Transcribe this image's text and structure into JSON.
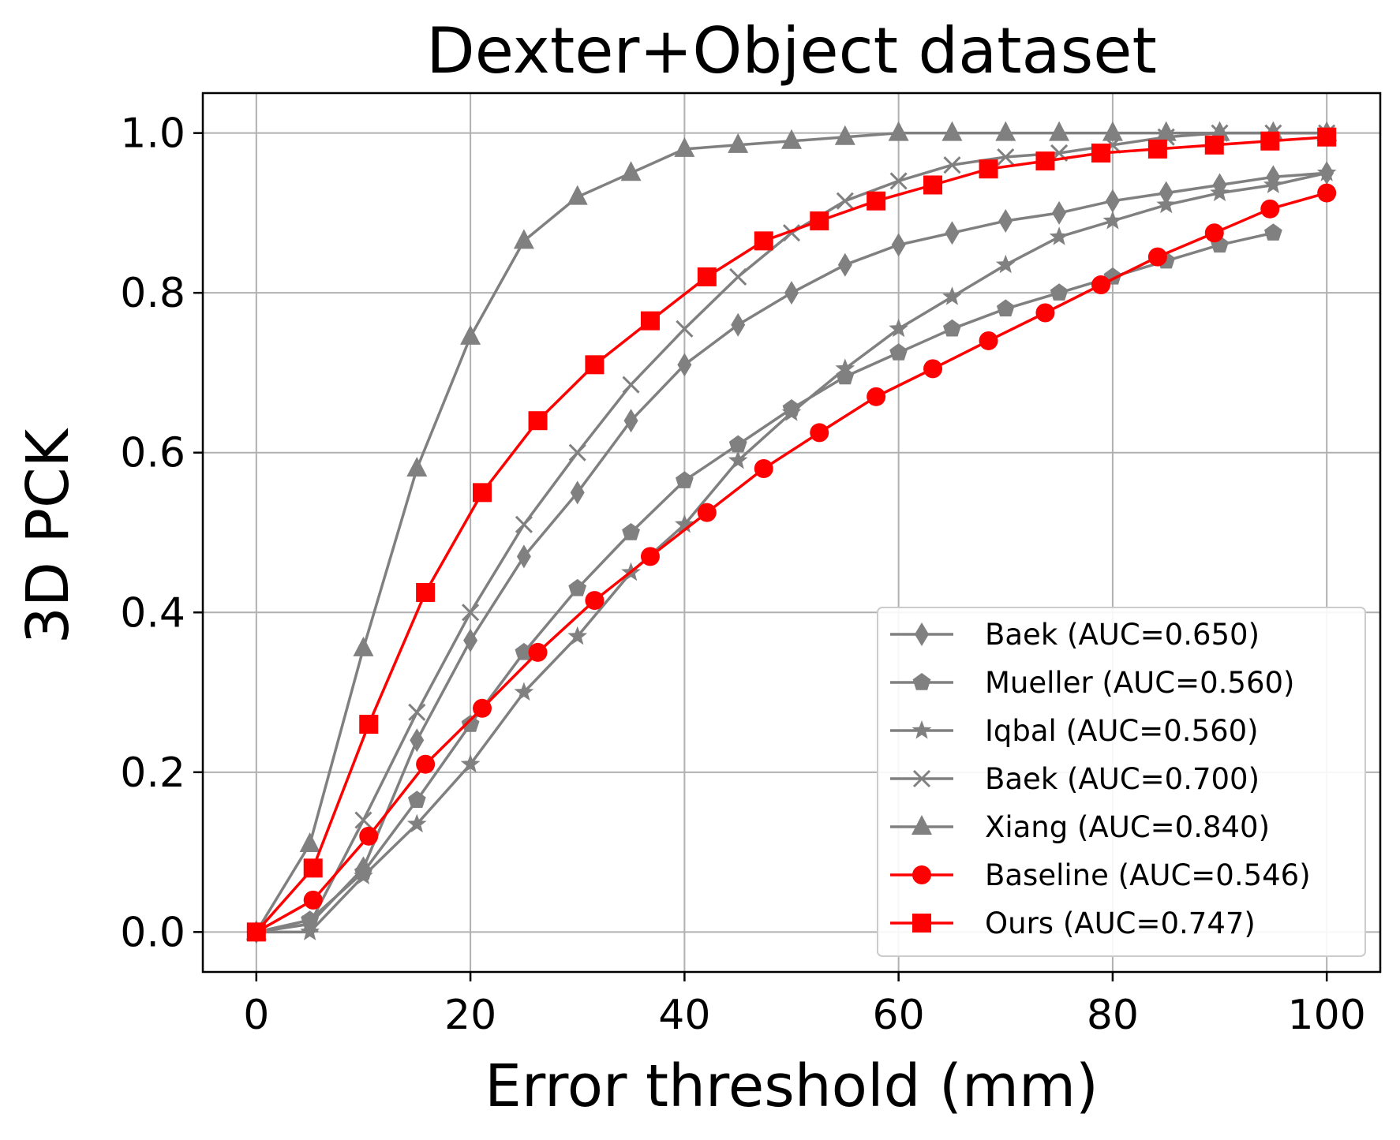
{
  "chart_data": {
    "type": "line",
    "title": "Dexter+Object dataset",
    "xlabel": "Error threshold (mm)",
    "ylabel": "3D PCK",
    "xlim": [
      -5,
      105
    ],
    "ylim": [
      -0.05,
      1.05
    ],
    "xticks": [
      0,
      20,
      40,
      60,
      80,
      100
    ],
    "xtick_labels": [
      "0",
      "20",
      "40",
      "60",
      "80",
      "100"
    ],
    "yticks": [
      0.0,
      0.2,
      0.4,
      0.6,
      0.8,
      1.0
    ],
    "ytick_labels": [
      "0.0",
      "0.2",
      "0.4",
      "0.6",
      "0.8",
      "1.0"
    ],
    "grid": true,
    "legend_position": "lower-right",
    "series": [
      {
        "name": "Baek (AUC=0.650)",
        "color": "#808080",
        "marker": "thin-diamond",
        "x": [
          0,
          5,
          10,
          15,
          20,
          25,
          30,
          35,
          40,
          45,
          50,
          55,
          60,
          65,
          70,
          75,
          80,
          85,
          90,
          95,
          100
        ],
        "y": [
          0.0,
          0.01,
          0.08,
          0.24,
          0.365,
          0.47,
          0.55,
          0.64,
          0.71,
          0.76,
          0.8,
          0.835,
          0.86,
          0.875,
          0.89,
          0.9,
          0.915,
          0.925,
          0.935,
          0.945,
          0.95
        ]
      },
      {
        "name": "Mueller (AUC=0.560)",
        "color": "#808080",
        "marker": "pentagon",
        "x": [
          0,
          5,
          10,
          15,
          20,
          25,
          30,
          35,
          40,
          45,
          50,
          55,
          60,
          65,
          70,
          75,
          80,
          85,
          90,
          95
        ],
        "y": [
          0.0,
          0.015,
          0.075,
          0.165,
          0.26,
          0.35,
          0.43,
          0.5,
          0.565,
          0.61,
          0.655,
          0.695,
          0.725,
          0.755,
          0.78,
          0.8,
          0.82,
          0.84,
          0.86,
          0.875
        ]
      },
      {
        "name": "Iqbal (AUC=0.560)",
        "color": "#808080",
        "marker": "star",
        "x": [
          0,
          5,
          10,
          15,
          20,
          25,
          30,
          35,
          40,
          45,
          50,
          55,
          60,
          65,
          70,
          75,
          80,
          85,
          90,
          95,
          100
        ],
        "y": [
          0.0,
          0.0,
          0.07,
          0.135,
          0.21,
          0.3,
          0.37,
          0.45,
          0.51,
          0.59,
          0.65,
          0.705,
          0.755,
          0.795,
          0.835,
          0.87,
          0.89,
          0.91,
          0.925,
          0.935,
          0.95
        ]
      },
      {
        "name": "Baek (AUC=0.700)",
        "color": "#808080",
        "marker": "x",
        "x": [
          0,
          5,
          10,
          15,
          20,
          25,
          30,
          35,
          40,
          45,
          50,
          55,
          60,
          65,
          70,
          75,
          80,
          85,
          90,
          95,
          100
        ],
        "y": [
          0.0,
          0.01,
          0.14,
          0.275,
          0.4,
          0.51,
          0.6,
          0.685,
          0.755,
          0.82,
          0.875,
          0.915,
          0.94,
          0.96,
          0.97,
          0.975,
          0.985,
          0.995,
          1.0,
          1.0,
          1.0
        ]
      },
      {
        "name": "Xiang (AUC=0.840)",
        "color": "#808080",
        "marker": "triangle",
        "x": [
          0,
          5,
          10,
          15,
          20,
          25,
          30,
          35,
          40,
          45,
          50,
          55,
          60,
          65,
          70,
          75,
          80,
          85,
          90,
          95,
          100
        ],
        "y": [
          0.0,
          0.11,
          0.355,
          0.58,
          0.745,
          0.865,
          0.92,
          0.95,
          0.98,
          0.985,
          0.99,
          0.995,
          1.0,
          1.0,
          1.0,
          1.0,
          1.0,
          1.0,
          1.0,
          1.0,
          1.0
        ]
      },
      {
        "name": "Baseline (AUC=0.546)",
        "color": "#ff0000",
        "marker": "circle",
        "x": [
          0,
          5.3,
          10.5,
          15.8,
          21.1,
          26.3,
          31.6,
          36.8,
          42.1,
          47.4,
          52.6,
          57.9,
          63.2,
          68.4,
          73.7,
          78.9,
          84.2,
          89.5,
          94.7,
          100
        ],
        "y": [
          0.0,
          0.04,
          0.12,
          0.21,
          0.28,
          0.35,
          0.415,
          0.47,
          0.525,
          0.58,
          0.625,
          0.67,
          0.705,
          0.74,
          0.775,
          0.81,
          0.845,
          0.875,
          0.905,
          0.925
        ]
      },
      {
        "name": "Ours (AUC=0.747)",
        "color": "#ff0000",
        "marker": "square",
        "x": [
          0,
          5.3,
          10.5,
          15.8,
          21.1,
          26.3,
          31.6,
          36.8,
          42.1,
          47.4,
          52.6,
          57.9,
          63.2,
          68.4,
          73.7,
          78.9,
          84.2,
          89.5,
          94.7,
          100
        ],
        "y": [
          0.0,
          0.08,
          0.26,
          0.425,
          0.55,
          0.64,
          0.71,
          0.765,
          0.82,
          0.865,
          0.89,
          0.915,
          0.935,
          0.955,
          0.965,
          0.975,
          0.98,
          0.985,
          0.99,
          0.995
        ]
      }
    ]
  }
}
